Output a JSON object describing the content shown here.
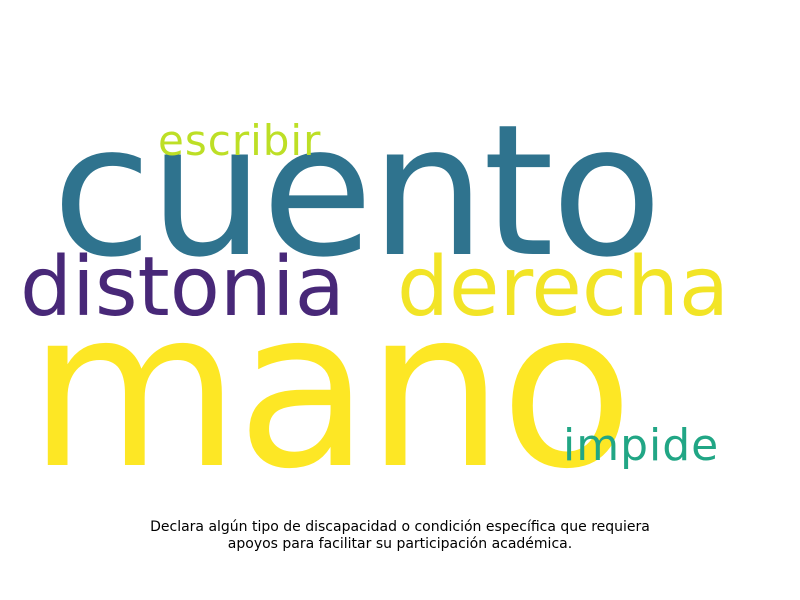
{
  "chart_data": {
    "type": "wordcloud",
    "words": [
      {
        "text": "mano",
        "rank": 1,
        "color": "#fde725"
      },
      {
        "text": "cuento",
        "rank": 2,
        "color": "#2f738e"
      },
      {
        "text": "distonia",
        "rank": 3,
        "color": "#482878"
      },
      {
        "text": "derecha",
        "rank": 3,
        "color": "#f2e426"
      },
      {
        "text": "escribir",
        "rank": 4,
        "color": "#bddf26"
      },
      {
        "text": "impide",
        "rank": 4,
        "color": "#21a685"
      }
    ],
    "caption": "Declara algún tipo de discapacidad o condición específica que requiera apoyos para facilitar su participación académica."
  }
}
